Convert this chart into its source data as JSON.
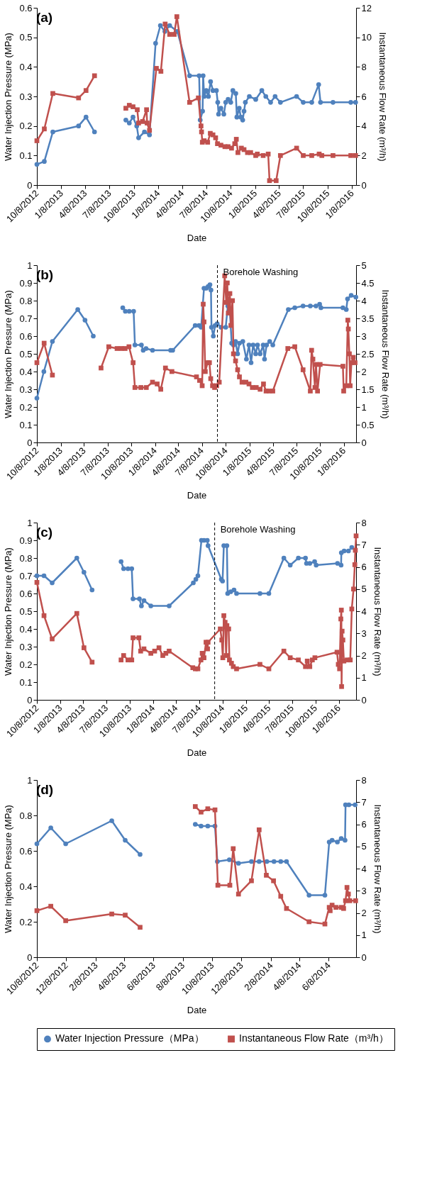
{
  "chart_data": [
    {
      "type": "line",
      "title": "(a)",
      "legend": "bottom",
      "xlabel": "Date",
      "ylabel": "Water Injection Pressure (MPa)",
      "y2label": "Instantaneous Flow Rate (m³/h)",
      "xlim": [
        "2012-10-08",
        "2016-01-23"
      ],
      "xticks": [
        {
          "value": "2012-10-08",
          "label": "10/8/2012"
        },
        {
          "value": "2013-01-08",
          "label": "1/8/2013"
        },
        {
          "value": "2013-04-08",
          "label": "4/8/2013"
        },
        {
          "value": "2013-07-08",
          "label": "7/8/2013"
        },
        {
          "value": "2013-10-08",
          "label": "10/8/2013"
        },
        {
          "value": "2014-01-08",
          "label": "1/8/2014"
        },
        {
          "value": "2014-04-08",
          "label": "4/8/2014"
        },
        {
          "value": "2014-07-08",
          "label": "7/8/2014"
        },
        {
          "value": "2014-10-08",
          "label": "10/8/2014"
        },
        {
          "value": "2015-01-08",
          "label": "1/8/2015"
        },
        {
          "value": "2015-04-08",
          "label": "4/8/2015"
        },
        {
          "value": "2015-07-08",
          "label": "7/8/2015"
        },
        {
          "value": "2015-10-08",
          "label": "10/8/2015"
        },
        {
          "value": "2016-01-08",
          "label": "1/8/2016"
        }
      ],
      "ylim": [
        0,
        0.6
      ],
      "yticks": [
        0,
        0.1,
        0.2,
        0.3,
        0.4,
        0.5,
        0.6
      ],
      "y2lim": [
        0,
        12
      ],
      "y2ticks": [
        0,
        2,
        4,
        6,
        8,
        10,
        12
      ],
      "series": [
        {
          "name": "Water Injection Pressure（MPa）",
          "color": "#4f81bd",
          "marker": "circle",
          "x": [
            "2012-10-08",
            "2012-11-05",
            "2012-12-07",
            "2013-03-14",
            "2013-04-11",
            "2013-05-13",
            "2013-07-08",
            "2013-09-08",
            "2013-09-21",
            "2013-10-05",
            "2013-10-19",
            "2013-10-26",
            "2013-11-17",
            "2013-12-06",
            "2013-12-29",
            "2014-01-16",
            "2014-02-02",
            "2014-02-20",
            "2014-03-21",
            "2014-05-06",
            "2014-06-11",
            "2014-06-15",
            "2014-06-24",
            "2014-06-26",
            "2014-06-30",
            "2014-07-08",
            "2014-07-16",
            "2014-07-24",
            "2014-08-02",
            "2014-08-15",
            "2014-08-20",
            "2014-08-23",
            "2014-09-01",
            "2014-09-12",
            "2014-09-19",
            "2014-09-28",
            "2014-10-08",
            "2014-10-16",
            "2014-10-27",
            "2014-10-31",
            "2014-11-09",
            "2014-11-15",
            "2014-11-22",
            "2014-11-27",
            "2014-12-02",
            "2014-12-17",
            "2015-01-10",
            "2015-02-02",
            "2015-02-17",
            "2015-03-07",
            "2015-03-24",
            "2015-04-13",
            "2015-06-13",
            "2015-07-08",
            "2015-08-09",
            "2015-09-04",
            "2015-09-11",
            "2015-10-28",
            "2016-01-03",
            "2016-01-21"
          ],
          "values": [
            0.07,
            0.08,
            0.18,
            0.2,
            0.23,
            0.18,
            null,
            0.22,
            0.21,
            0.23,
            0.2,
            0.16,
            0.18,
            0.17,
            0.48,
            0.54,
            0.52,
            0.54,
            0.52,
            0.37,
            0.37,
            0.22,
            0.25,
            0.37,
            0.3,
            0.32,
            0.3,
            0.35,
            0.32,
            0.32,
            0.28,
            0.24,
            0.26,
            0.24,
            0.28,
            0.29,
            0.28,
            0.32,
            0.31,
            0.23,
            0.26,
            0.23,
            0.22,
            0.25,
            0.28,
            0.3,
            0.29,
            0.32,
            0.3,
            0.28,
            0.3,
            0.28,
            0.3,
            0.28,
            0.28,
            0.34,
            0.28,
            0.28,
            0.28,
            0.28
          ]
        },
        {
          "name": "Instantaneous Flow Rate（m³/h）",
          "color": "#c0504d",
          "marker": "square",
          "axis": "y2",
          "x": [
            "2012-10-08",
            "2012-11-05",
            "2012-12-07",
            "2013-03-14",
            "2013-04-11",
            "2013-05-13",
            "2013-07-08",
            "2013-09-08",
            "2013-09-21",
            "2013-10-05",
            "2013-10-21",
            "2013-10-26",
            "2013-11-10",
            "2013-11-25",
            "2013-11-27",
            "2013-12-06",
            "2014-01-01",
            "2014-01-18",
            "2014-02-03",
            "2014-02-20",
            "2014-03-09",
            "2014-03-19",
            "2014-05-06",
            "2014-06-08",
            "2014-06-18",
            "2014-06-20",
            "2014-06-23",
            "2014-06-30",
            "2014-07-13",
            "2014-07-23",
            "2014-08-02",
            "2014-08-12",
            "2014-08-19",
            "2014-09-01",
            "2014-09-16",
            "2014-09-28",
            "2014-10-11",
            "2014-10-23",
            "2014-10-29",
            "2014-11-04",
            "2014-11-17",
            "2014-11-27",
            "2014-12-10",
            "2014-12-22",
            "2015-01-10",
            "2015-01-16",
            "2015-02-07",
            "2015-02-26",
            "2015-03-03",
            "2015-03-28",
            "2015-04-13",
            "2015-06-13",
            "2015-07-08",
            "2015-08-09",
            "2015-09-06",
            "2015-09-16",
            "2015-10-28",
            "2016-01-03",
            "2016-01-21"
          ],
          "values": [
            3.0,
            3.8,
            6.2,
            5.9,
            6.4,
            7.4,
            null,
            5.2,
            5.4,
            5.3,
            5.1,
            4.2,
            4.3,
            5.1,
            4.2,
            3.7,
            7.9,
            7.7,
            10.9,
            10.2,
            10.2,
            11.4,
            5.6,
            5.9,
            4.0,
            3.6,
            2.9,
            3.0,
            2.9,
            3.5,
            3.4,
            3.2,
            2.8,
            2.7,
            2.6,
            2.6,
            2.5,
            2.8,
            3.1,
            2.2,
            2.5,
            2.4,
            2.2,
            2.2,
            2.0,
            2.1,
            2.0,
            2.1,
            0.3,
            0.3,
            2.0,
            2.5,
            2.0,
            2.0,
            2.1,
            2.0,
            2.0,
            2.0,
            2.0
          ]
        }
      ]
    },
    {
      "type": "line",
      "title": "(b)",
      "xlabel": "Date",
      "ylabel": "Water Injection Pressure (MPa)",
      "y2label": "Instantaneous Flow Rate (m³/h)",
      "xlim": [
        "2012-10-08",
        "2016-02-24"
      ],
      "xticks": [
        {
          "value": "2012-10-08",
          "label": "10/8/2012"
        },
        {
          "value": "2013-01-08",
          "label": "1/8/2013"
        },
        {
          "value": "2013-04-08",
          "label": "4/8/2013"
        },
        {
          "value": "2013-07-08",
          "label": "7/8/2013"
        },
        {
          "value": "2013-10-08",
          "label": "10/8/2013"
        },
        {
          "value": "2014-01-08",
          "label": "1/8/2014"
        },
        {
          "value": "2014-04-08",
          "label": "4/8/2014"
        },
        {
          "value": "2014-07-08",
          "label": "7/8/2014"
        },
        {
          "value": "2014-10-08",
          "label": "10/8/2014"
        },
        {
          "value": "2015-01-08",
          "label": "1/8/2015"
        },
        {
          "value": "2015-04-08",
          "label": "4/8/2015"
        },
        {
          "value": "2015-07-08",
          "label": "7/8/2015"
        },
        {
          "value": "2015-10-08",
          "label": "10/8/2015"
        },
        {
          "value": "2016-01-08",
          "label": "1/8/2016"
        }
      ],
      "ylim": [
        0,
        1
      ],
      "yticks": [
        0,
        0.1,
        0.2,
        0.3,
        0.4,
        0.5,
        0.6,
        0.7,
        0.8,
        0.9,
        1
      ],
      "y2lim": [
        0,
        5
      ],
      "y2ticks": [
        0,
        0.5,
        1,
        1.5,
        2,
        2.5,
        3,
        3.5,
        4,
        4.5,
        5
      ],
      "ref_lines": [
        {
          "axis": "x",
          "value": "2014-09-06",
          "label": "Borehole Washing",
          "color": "#000000",
          "line_style": "dashed"
        }
      ],
      "series": [
        {
          "name": "Water Injection Pressure（MPa）",
          "color": "#4f81bd",
          "marker": "circle",
          "x": [
            "2012-10-08",
            "2012-11-04",
            "2012-12-07",
            "2013-03-15",
            "2013-04-12",
            "2013-05-14",
            "2013-07-08",
            "2013-09-05",
            "2013-09-15",
            "2013-09-30",
            "2013-10-17",
            "2013-10-22",
            "2013-11-16",
            "2013-11-23",
            "2013-12-04",
            "2013-12-29",
            "2014-03-09",
            "2014-03-17",
            "2014-06-12",
            "2014-06-27",
            "2014-07-05",
            "2014-07-16",
            "2014-07-25",
            "2014-08-01",
            "2014-08-08",
            "2014-08-12",
            "2014-08-14",
            "2014-08-21",
            "2014-08-28",
            "2014-09-05",
            "2014-09-20",
            "2014-10-08",
            "2014-10-16",
            "2014-10-24",
            "2014-10-31",
            "2014-11-07",
            "2014-11-15",
            "2014-11-23",
            "2014-11-30",
            "2014-12-13",
            "2014-12-27",
            "2015-01-06",
            "2015-01-14",
            "2015-01-22",
            "2015-02-01",
            "2015-02-08",
            "2015-02-18",
            "2015-03-02",
            "2015-03-07",
            "2015-03-15",
            "2015-03-27",
            "2015-04-08",
            "2015-06-07",
            "2015-07-02",
            "2015-08-03",
            "2015-08-31",
            "2015-09-22",
            "2015-10-06",
            "2015-10-11",
            "2016-01-04",
            "2016-01-17",
            "2016-01-22",
            "2016-02-05",
            "2016-02-23"
          ],
          "values": [
            0.25,
            0.4,
            0.57,
            0.75,
            0.69,
            0.6,
            null,
            0.76,
            0.74,
            0.74,
            0.74,
            0.55,
            0.55,
            0.52,
            0.53,
            0.52,
            0.52,
            0.52,
            0.66,
            0.66,
            0.65,
            0.87,
            0.87,
            0.88,
            0.89,
            0.86,
            0.65,
            0.6,
            0.66,
            0.67,
            0.65,
            0.65,
            0.77,
            0.74,
            0.56,
            0.55,
            0.57,
            0.5,
            0.56,
            0.57,
            0.47,
            0.55,
            0.45,
            0.55,
            0.5,
            0.55,
            0.5,
            0.55,
            0.47,
            0.55,
            0.57,
            0.55,
            0.75,
            0.76,
            0.77,
            0.77,
            0.77,
            0.78,
            0.76,
            0.76,
            0.75,
            0.81,
            0.83,
            0.82
          ]
        },
        {
          "name": "Instantaneous Flow Rate（m³/h）",
          "color": "#c0504d",
          "marker": "square",
          "axis": "y2",
          "x": [
            "2012-10-08",
            "2012-11-05",
            "2012-12-07",
            "2013-03-01",
            "2013-06-13",
            "2013-07-13",
            "2013-08-14",
            "2013-08-30",
            "2013-09-14",
            "2013-09-29",
            "2013-10-15",
            "2013-10-22",
            "2013-11-14",
            "2013-12-05",
            "2013-12-29",
            "2014-01-16",
            "2014-01-30",
            "2014-02-17",
            "2014-03-14",
            "2014-06-17",
            "2014-06-29",
            "2014-07-09",
            "2014-07-13",
            "2014-07-16",
            "2014-07-21",
            "2014-07-30",
            "2014-08-06",
            "2014-08-11",
            "2014-08-18",
            "2014-08-26",
            "2014-09-03",
            "2014-09-13",
            "2014-10-04",
            "2014-10-10",
            "2014-10-14",
            "2014-10-18",
            "2014-10-24",
            "2014-10-28",
            "2014-11-03",
            "2014-11-07",
            "2014-11-15",
            "2014-11-23",
            "2014-11-30",
            "2014-12-10",
            "2014-12-25",
            "2015-01-06",
            "2015-01-19",
            "2015-02-03",
            "2015-02-18",
            "2015-03-03",
            "2015-03-13",
            "2015-03-25",
            "2015-04-08",
            "2015-06-05",
            "2015-07-02",
            "2015-08-03",
            "2015-08-31",
            "2015-09-05",
            "2015-09-10",
            "2015-09-18",
            "2015-09-22",
            "2015-09-28",
            "2015-10-08",
            "2016-01-04",
            "2016-01-07",
            "2016-01-17",
            "2016-01-23",
            "2016-01-25",
            "2016-01-29",
            "2016-02-01",
            "2016-02-06",
            "2016-02-13",
            "2016-02-20"
          ],
          "values": [
            2.25,
            2.8,
            1.9,
            null,
            2.1,
            2.7,
            2.65,
            2.65,
            2.65,
            2.7,
            2.25,
            1.55,
            1.55,
            1.55,
            1.7,
            1.65,
            1.5,
            2.1,
            2.0,
            1.85,
            1.75,
            1.6,
            3.9,
            3.4,
            2.0,
            2.25,
            2.25,
            1.8,
            1.6,
            1.55,
            1.6,
            1.7,
            4.7,
            3.95,
            4.5,
            3.65,
            4.2,
            3.3,
            4.0,
            2.5,
            2.3,
            2.05,
            1.85,
            1.7,
            1.7,
            1.65,
            1.55,
            1.55,
            1.5,
            1.65,
            1.45,
            1.45,
            1.45,
            2.65,
            2.7,
            2.05,
            1.45,
            2.6,
            2.35,
            1.55,
            2.2,
            1.45,
            2.2,
            2.15,
            1.45,
            1.6,
            3.45,
            3.2,
            2.5,
            1.6,
            2.25,
            2.4,
            2.25
          ]
        }
      ]
    },
    {
      "type": "line",
      "title": "(c)",
      "xlabel": "Date",
      "ylabel": "Water Injection Pressure (MPa)",
      "y2label": "Instantaneous Flow Rate (m³/h)",
      "xlim": [
        "2012-10-08",
        "2016-03-16"
      ],
      "xticks": [
        {
          "value": "2012-10-08",
          "label": "10/8/2012"
        },
        {
          "value": "2013-01-08",
          "label": "1/8/2013"
        },
        {
          "value": "2013-04-08",
          "label": "4/8/2013"
        },
        {
          "value": "2013-07-08",
          "label": "7/8/2013"
        },
        {
          "value": "2013-10-08",
          "label": "10/8/2013"
        },
        {
          "value": "2014-01-08",
          "label": "1/8/2014"
        },
        {
          "value": "2014-04-08",
          "label": "4/8/2014"
        },
        {
          "value": "2014-07-08",
          "label": "7/8/2014"
        },
        {
          "value": "2014-10-08",
          "label": "10/8/2014"
        },
        {
          "value": "2015-01-08",
          "label": "1/8/2015"
        },
        {
          "value": "2015-04-08",
          "label": "4/8/2015"
        },
        {
          "value": "2015-07-08",
          "label": "7/8/2015"
        },
        {
          "value": "2015-10-08",
          "label": "10/8/2015"
        },
        {
          "value": "2016-01-08",
          "label": "1/8/2016"
        }
      ],
      "ylim": [
        0,
        1
      ],
      "yticks": [
        0,
        0.1,
        0.2,
        0.3,
        0.4,
        0.5,
        0.6,
        0.7,
        0.8,
        0.9,
        1
      ],
      "y2lim": [
        0,
        8
      ],
      "y2ticks": [
        0,
        1,
        2,
        3,
        4,
        5,
        6,
        7,
        8
      ],
      "ref_lines": [
        {
          "axis": "x",
          "value": "2014-09-07",
          "label": "Borehole Washing",
          "color": "#000000",
          "line_style": "dashed"
        }
      ],
      "series": [
        {
          "name": "Water Injection Pressure（MPa）",
          "color": "#4f81bd",
          "marker": "circle",
          "x": [
            "2012-10-08",
            "2012-11-05",
            "2012-12-07",
            "2013-03-14",
            "2013-04-11",
            "2013-05-13",
            "2013-07-08",
            "2013-09-04",
            "2013-09-14",
            "2013-10-01",
            "2013-10-16",
            "2013-10-21",
            "2013-11-15",
            "2013-11-23",
            "2013-12-03",
            "2013-12-30",
            "2014-03-12",
            "2014-06-15",
            "2014-06-25",
            "2014-07-03",
            "2014-07-17",
            "2014-07-27",
            "2014-08-09",
            "2014-08-12",
            "2014-10-03",
            "2014-10-08",
            "2014-10-13",
            "2014-10-25",
            "2014-10-28",
            "2014-11-09",
            "2014-11-22",
            "2014-12-02",
            "2015-03-04",
            "2015-04-08",
            "2015-06-06",
            "2015-07-01",
            "2015-08-02",
            "2015-08-30",
            "2015-09-03",
            "2015-09-16",
            "2015-10-05",
            "2015-10-11",
            "2016-01-03",
            "2016-01-17",
            "2016-01-18",
            "2016-01-29",
            "2016-02-15",
            "2016-02-28"
          ],
          "values": [
            0.7,
            0.7,
            0.66,
            0.8,
            0.72,
            0.62,
            null,
            0.78,
            0.74,
            0.74,
            0.74,
            0.57,
            0.57,
            0.53,
            0.56,
            0.53,
            0.53,
            0.66,
            0.68,
            0.7,
            0.9,
            0.9,
            0.9,
            0.87,
            0.68,
            0.67,
            0.87,
            0.87,
            0.6,
            0.61,
            0.62,
            0.6,
            0.6,
            0.6,
            0.8,
            0.76,
            0.8,
            0.8,
            0.77,
            0.77,
            0.78,
            0.76,
            0.77,
            0.76,
            0.83,
            0.84,
            0.84,
            0.86
          ]
        },
        {
          "name": "Instantaneous Flow Rate（m³/h）",
          "color": "#c0504d",
          "marker": "square",
          "axis": "y2",
          "x": [
            "2012-10-08",
            "2012-11-05",
            "2012-12-07",
            "2013-03-14",
            "2013-04-11",
            "2013-05-13",
            "2013-07-08",
            "2013-09-04",
            "2013-09-14",
            "2013-10-01",
            "2013-10-16",
            "2013-10-21",
            "2013-11-13",
            "2013-11-20",
            "2013-12-03",
            "2013-12-30",
            "2014-01-14",
            "2014-01-31",
            "2014-02-15",
            "2014-02-27",
            "2014-03-12",
            "2014-06-13",
            "2014-06-23",
            "2014-07-03",
            "2014-07-15",
            "2014-07-20",
            "2014-07-27",
            "2014-08-04",
            "2014-08-10",
            "2014-08-12",
            "2014-09-29",
            "2014-10-05",
            "2014-10-09",
            "2014-10-13",
            "2014-10-18",
            "2014-10-22",
            "2014-10-25",
            "2014-11-01",
            "2014-11-04",
            "2014-11-12",
            "2014-11-19",
            "2014-12-02",
            "2015-03-04",
            "2015-04-08",
            "2015-06-06",
            "2015-07-01",
            "2015-08-02",
            "2015-08-30",
            "2015-09-06",
            "2015-09-16",
            "2015-09-26",
            "2015-10-06",
            "2016-01-01",
            "2016-01-06",
            "2016-01-11",
            "2016-01-16",
            "2016-01-18",
            "2016-01-19",
            "2016-01-21",
            "2016-01-24",
            "2016-01-28",
            "2016-02-10",
            "2016-02-22",
            "2016-02-28",
            "2016-03-06",
            "2016-03-11",
            "2016-03-13",
            "2016-03-16"
          ],
          "values": [
            5.3,
            3.8,
            2.75,
            3.9,
            2.35,
            1.7,
            null,
            1.8,
            2.0,
            1.8,
            1.8,
            2.8,
            2.8,
            2.2,
            2.3,
            2.1,
            2.2,
            2.35,
            2.0,
            2.1,
            2.2,
            1.45,
            1.4,
            1.4,
            1.8,
            2.1,
            1.9,
            2.6,
            2.3,
            2.6,
            3.2,
            2.7,
            1.9,
            3.8,
            3.5,
            2.0,
            3.35,
            3.2,
            1.8,
            1.65,
            1.5,
            1.4,
            1.6,
            1.4,
            2.2,
            1.9,
            1.8,
            1.5,
            1.75,
            1.5,
            1.8,
            1.9,
            2.15,
            1.6,
            1.4,
            3.65,
            4.05,
            0.6,
            3.1,
            2.7,
            1.75,
            1.8,
            1.8,
            4.1,
            5.0,
            6.1,
            6.75,
            7.4
          ]
        }
      ]
    },
    {
      "type": "line",
      "title": "(d)",
      "xlabel": "Date",
      "ylabel": "Water Injection Pressure (MPa)",
      "y2label": "Instantaneous Flow Rate (m³/h)",
      "xlim": [
        "2012-10-08",
        "2014-08-04"
      ],
      "xticks": [
        {
          "value": "2012-10-08",
          "label": "10/8/2012"
        },
        {
          "value": "2012-12-08",
          "label": "12/8/2012"
        },
        {
          "value": "2013-02-08",
          "label": "2/8/2013"
        },
        {
          "value": "2013-04-08",
          "label": "4/8/2013"
        },
        {
          "value": "2013-06-08",
          "label": "6/8/2013"
        },
        {
          "value": "2013-08-08",
          "label": "8/8/2013"
        },
        {
          "value": "2013-10-08",
          "label": "10/8/2013"
        },
        {
          "value": "2013-12-08",
          "label": "12/8/2013"
        },
        {
          "value": "2014-02-08",
          "label": "2/8/2014"
        },
        {
          "value": "2014-04-08",
          "label": "4/8/2014"
        },
        {
          "value": "2014-06-08",
          "label": "6/8/2014"
        }
      ],
      "ylim": [
        0,
        1
      ],
      "yticks": [
        0,
        0.2,
        0.4,
        0.6,
        0.8,
        1
      ],
      "y2lim": [
        0,
        8
      ],
      "y2ticks": [
        0,
        1,
        2,
        3,
        4,
        5,
        6,
        7,
        8
      ],
      "series": [
        {
          "name": "Water Injection Pressure（MPa）",
          "color": "#4f81bd",
          "marker": "circle",
          "x": [
            "2012-10-08",
            "2012-11-06",
            "2012-12-07",
            "2013-03-13",
            "2013-04-10",
            "2013-05-11",
            "2013-07-08",
            "2013-09-03",
            "2013-09-15",
            "2013-09-29",
            "2013-10-14",
            "2013-10-19",
            "2013-11-13",
            "2013-12-02",
            "2013-12-29",
            "2014-01-14",
            "2014-01-30",
            "2014-02-14",
            "2014-02-28",
            "2014-03-12",
            "2014-04-28",
            "2014-05-31",
            "2014-06-09",
            "2014-06-15",
            "2014-06-26",
            "2014-07-04",
            "2014-07-12",
            "2014-07-13",
            "2014-07-20",
            "2014-08-02"
          ],
          "values": [
            0.64,
            0.73,
            0.64,
            0.77,
            0.66,
            0.58,
            null,
            0.75,
            0.74,
            0.74,
            0.74,
            0.54,
            0.55,
            0.53,
            0.54,
            0.54,
            0.54,
            0.54,
            0.54,
            0.54,
            0.35,
            0.35,
            0.65,
            0.66,
            0.65,
            0.67,
            0.66,
            0.86,
            0.86,
            0.86
          ]
        },
        {
          "name": "Instantaneous Flow Rate（m³/h）",
          "color": "#c0504d",
          "marker": "square",
          "axis": "y2",
          "x": [
            "2012-10-08",
            "2012-11-06",
            "2012-12-07",
            "2013-03-13",
            "2013-04-10",
            "2013-05-11",
            "2013-07-08",
            "2013-09-03",
            "2013-09-15",
            "2013-09-29",
            "2013-10-14",
            "2013-10-20",
            "2013-11-14",
            "2013-11-21",
            "2013-12-02",
            "2013-12-29",
            "2014-01-14",
            "2014-01-29",
            "2014-02-13",
            "2014-02-28",
            "2014-03-12",
            "2014-04-28",
            "2014-05-31",
            "2014-06-09",
            "2014-06-11",
            "2014-06-15",
            "2014-06-23",
            "2014-07-04",
            "2014-07-09",
            "2014-07-13",
            "2014-07-16",
            "2014-07-19",
            "2014-07-22",
            "2014-08-03"
          ],
          "values": [
            2.1,
            2.3,
            1.65,
            1.95,
            1.9,
            1.35,
            null,
            6.8,
            6.55,
            6.7,
            6.65,
            3.25,
            3.25,
            4.9,
            2.85,
            3.45,
            5.75,
            3.7,
            3.45,
            2.75,
            2.2,
            1.6,
            1.5,
            2.25,
            2.1,
            2.35,
            2.25,
            2.25,
            2.2,
            2.55,
            3.15,
            2.85,
            2.55,
            2.55
          ]
        }
      ]
    }
  ]
}
